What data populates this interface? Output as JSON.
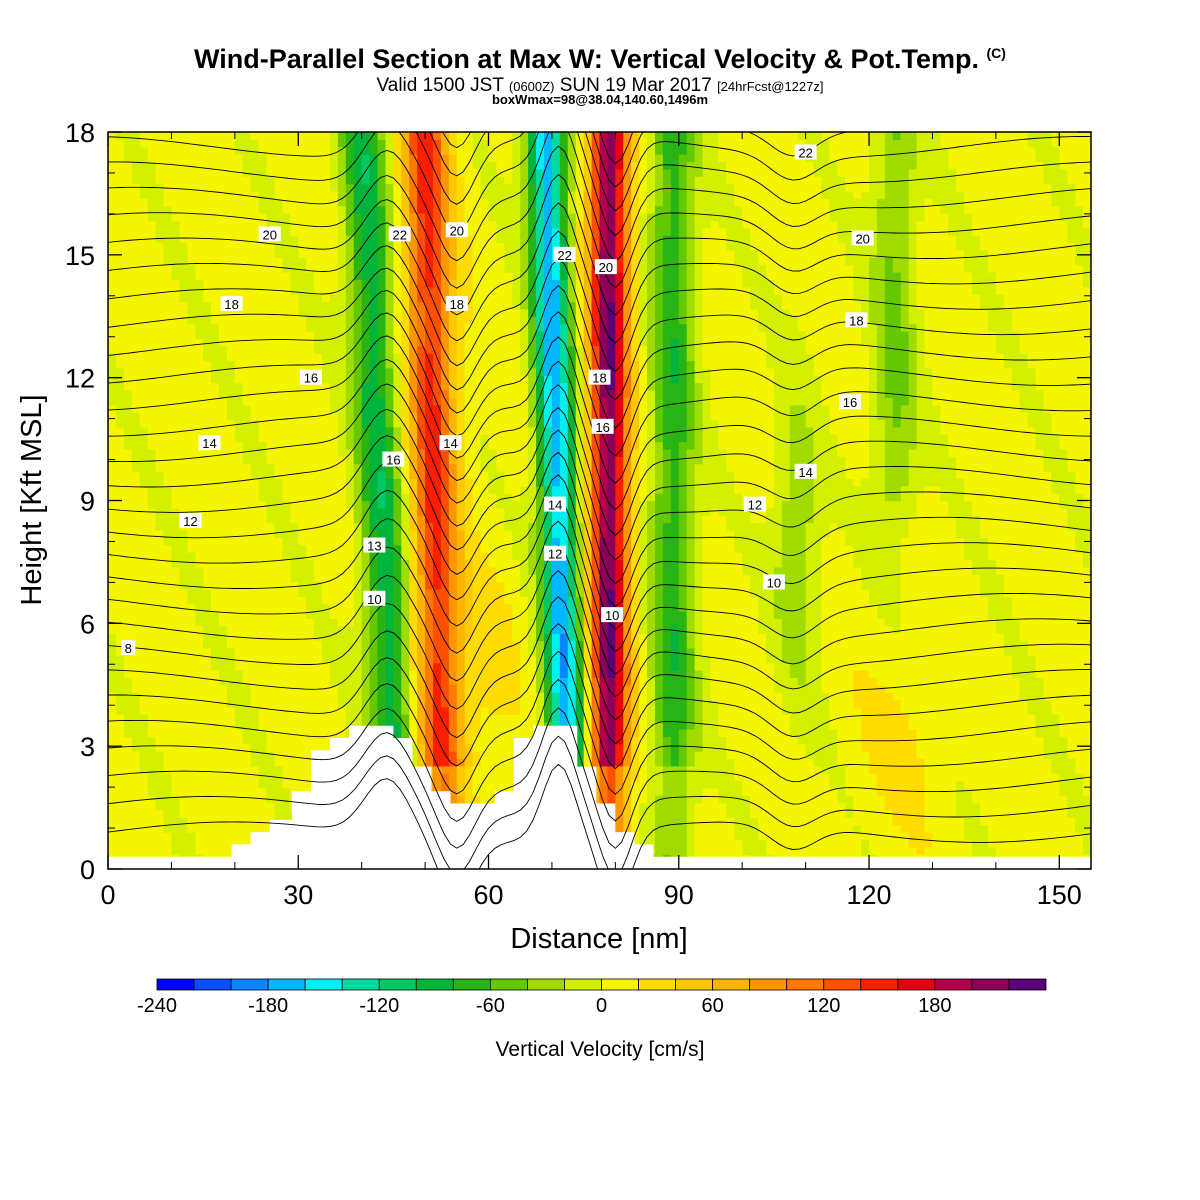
{
  "header": {
    "title_main": "Wind-Parallel Section at Max W: Vertical Velocity & Pot.Temp.",
    "title_copyright": "(C)",
    "subtitle_a": "Valid 1500 JST",
    "subtitle_b": "(0600Z)",
    "subtitle_c": "SUN 19 Mar 2017",
    "subtitle_d": "[24hrFcst@1227z]",
    "info": "boxWmax=98@38.04,140.60,1496m"
  },
  "chart_data": {
    "type": "heatmap",
    "xlabel": "Distance [nm]",
    "ylabel": "Height [Kft MSL]",
    "xlim": [
      0,
      155
    ],
    "ylim": [
      0,
      18
    ],
    "xticks": [
      "0",
      "30",
      "60",
      "90",
      "120",
      "150"
    ],
    "yticks": [
      "0",
      "3",
      "6",
      "9",
      "12",
      "15",
      "18"
    ],
    "colorbar": {
      "label": "Vertical Velocity [cm/s]",
      "ticks": [
        "-240",
        "-180",
        "-120",
        "-60",
        "0",
        "60",
        "120",
        "180"
      ],
      "levels": [
        -240,
        -220,
        -200,
        -180,
        -160,
        -140,
        -120,
        -100,
        -80,
        -60,
        -40,
        -20,
        0,
        20,
        40,
        60,
        80,
        100,
        120,
        140,
        160,
        180,
        200,
        220
      ],
      "colors": [
        "#0000ff",
        "#0a4cff",
        "#0a84ff",
        "#00b8ff",
        "#00f0f0",
        "#00dca0",
        "#00c864",
        "#00b43c",
        "#28b414",
        "#64c800",
        "#a0dc00",
        "#d2f000",
        "#f5f500",
        "#ffdc00",
        "#ffc800",
        "#ffb400",
        "#ff9600",
        "#ff7800",
        "#ff5000",
        "#ff1e00",
        "#e60014",
        "#b4004b",
        "#8c005a",
        "#5a0078"
      ]
    },
    "velocity_features": [
      {
        "name": "downdraft",
        "x_top": 40,
        "x_bottom": 46,
        "peak": -100
      },
      {
        "name": "updraft",
        "x_top": 50,
        "x_bottom": 53,
        "peak": 140
      },
      {
        "name": "downdraft",
        "x_top": 69,
        "x_bottom": 73,
        "peak": -180
      },
      {
        "name": "updraft",
        "x_top": 79,
        "x_bottom": 79,
        "peak": 210
      },
      {
        "name": "downdraft",
        "x_top": 89,
        "x_bottom": 89,
        "peak": -80
      },
      {
        "name": "downdraft",
        "x_top": 124,
        "x_bottom": 124,
        "peak": -50
      },
      {
        "name": "downdraft",
        "x_top": 108,
        "x_bottom": 109,
        "peak": -50
      }
    ],
    "terrain": [
      [
        0,
        0.3
      ],
      [
        19.5,
        0.3
      ],
      [
        19.5,
        0.6
      ],
      [
        22.5,
        0.6
      ],
      [
        22.5,
        0.9
      ],
      [
        25.5,
        0.9
      ],
      [
        25.5,
        1.2
      ],
      [
        29,
        1.2
      ],
      [
        29,
        1.9
      ],
      [
        32,
        1.9
      ],
      [
        32,
        2.9
      ],
      [
        35,
        2.9
      ],
      [
        35,
        3.2
      ],
      [
        38,
        3.2
      ],
      [
        38,
        3.5
      ],
      [
        45,
        3.5
      ],
      [
        45,
        3.2
      ],
      [
        48,
        3.2
      ],
      [
        48,
        2.5
      ],
      [
        51,
        2.5
      ],
      [
        51,
        1.9
      ],
      [
        54,
        1.9
      ],
      [
        54,
        1.6
      ],
      [
        61,
        1.6
      ],
      [
        61,
        1.9
      ],
      [
        64,
        1.9
      ],
      [
        64,
        3.2
      ],
      [
        67,
        3.2
      ],
      [
        67,
        3.5
      ],
      [
        74,
        3.5
      ],
      [
        74,
        2.5
      ],
      [
        77,
        2.5
      ],
      [
        77,
        1.6
      ],
      [
        80,
        1.6
      ],
      [
        80,
        0.9
      ],
      [
        83,
        0.9
      ],
      [
        83,
        0.6
      ],
      [
        86,
        0.6
      ],
      [
        86,
        0.3
      ],
      [
        155,
        0.3
      ]
    ],
    "theta_contours": [
      {
        "level": "8",
        "label_x": 3.2,
        "label_y": 5.4
      },
      {
        "level": "10",
        "label_x": 42,
        "label_y": 6.6
      },
      {
        "level": "10",
        "label_x": 79.5,
        "label_y": 6.2
      },
      {
        "level": "10",
        "label_x": 105,
        "label_y": 7.0
      },
      {
        "level": "12",
        "label_x": 13,
        "label_y": 8.5
      },
      {
        "level": "12",
        "label_x": 70.5,
        "label_y": 7.7
      },
      {
        "level": "12",
        "label_x": 102,
        "label_y": 8.9
      },
      {
        "level": "13",
        "label_x": 42,
        "label_y": 7.9
      },
      {
        "level": "14",
        "label_x": 16,
        "label_y": 10.4
      },
      {
        "level": "14",
        "label_x": 54,
        "label_y": 10.4
      },
      {
        "level": "14",
        "label_x": 70.5,
        "label_y": 8.9
      },
      {
        "level": "14",
        "label_x": 110,
        "label_y": 9.7
      },
      {
        "level": "16",
        "label_x": 32,
        "label_y": 12.0
      },
      {
        "level": "16",
        "label_x": 45,
        "label_y": 10.0
      },
      {
        "level": "16",
        "label_x": 78,
        "label_y": 10.8
      },
      {
        "level": "16",
        "label_x": 117,
        "label_y": 11.4
      },
      {
        "level": "18",
        "label_x": 19.5,
        "label_y": 13.8
      },
      {
        "level": "18",
        "label_x": 55,
        "label_y": 13.8
      },
      {
        "level": "18",
        "label_x": 77.5,
        "label_y": 12.0
      },
      {
        "level": "18",
        "label_x": 118,
        "label_y": 13.4
      },
      {
        "level": "20",
        "label_x": 25.5,
        "label_y": 15.5
      },
      {
        "level": "20",
        "label_x": 55,
        "label_y": 15.6
      },
      {
        "level": "20",
        "label_x": 78.5,
        "label_y": 14.7
      },
      {
        "level": "20",
        "label_x": 119,
        "label_y": 15.4
      },
      {
        "level": "22",
        "label_x": 46,
        "label_y": 15.5
      },
      {
        "level": "22",
        "label_x": 72,
        "label_y": 15.0
      },
      {
        "level": "22",
        "label_x": 110,
        "label_y": 17.5
      }
    ]
  }
}
